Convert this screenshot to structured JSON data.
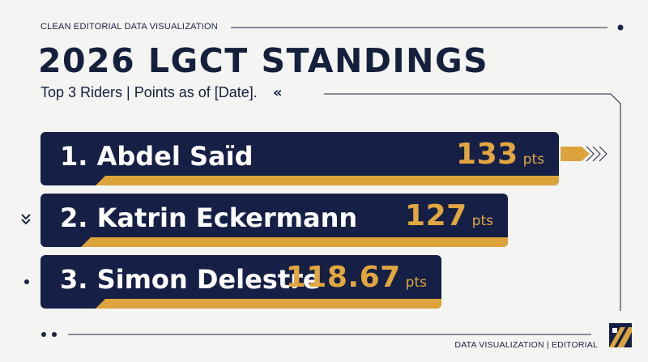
{
  "header": {
    "eyebrow": "CLEAN EDITORIAL DATA VISUALIZATION",
    "title": "2026 LGCT STANDINGS",
    "subtitle": "Top 3 Riders | Points as of [Date].",
    "subtitle_chevron": "«"
  },
  "footer": {
    "label": "DATA VISUALIZATION | EDITORIAL"
  },
  "colors": {
    "bar": "#162046",
    "accent": "#dca33c",
    "background": "#f4f4f2"
  },
  "chart_data": {
    "type": "bar",
    "orientation": "horizontal",
    "title": "2026 LGCT STANDINGS",
    "subtitle": "Top 3 Riders | Points as of [Date].",
    "unit": "pts",
    "categories": [
      "1. Abdel Saïd",
      "2. Katrin Eckermann",
      "3. Simon Delestre"
    ],
    "values": [
      133,
      127,
      118.67
    ],
    "value_labels": [
      "133",
      "127",
      "118.67"
    ]
  }
}
